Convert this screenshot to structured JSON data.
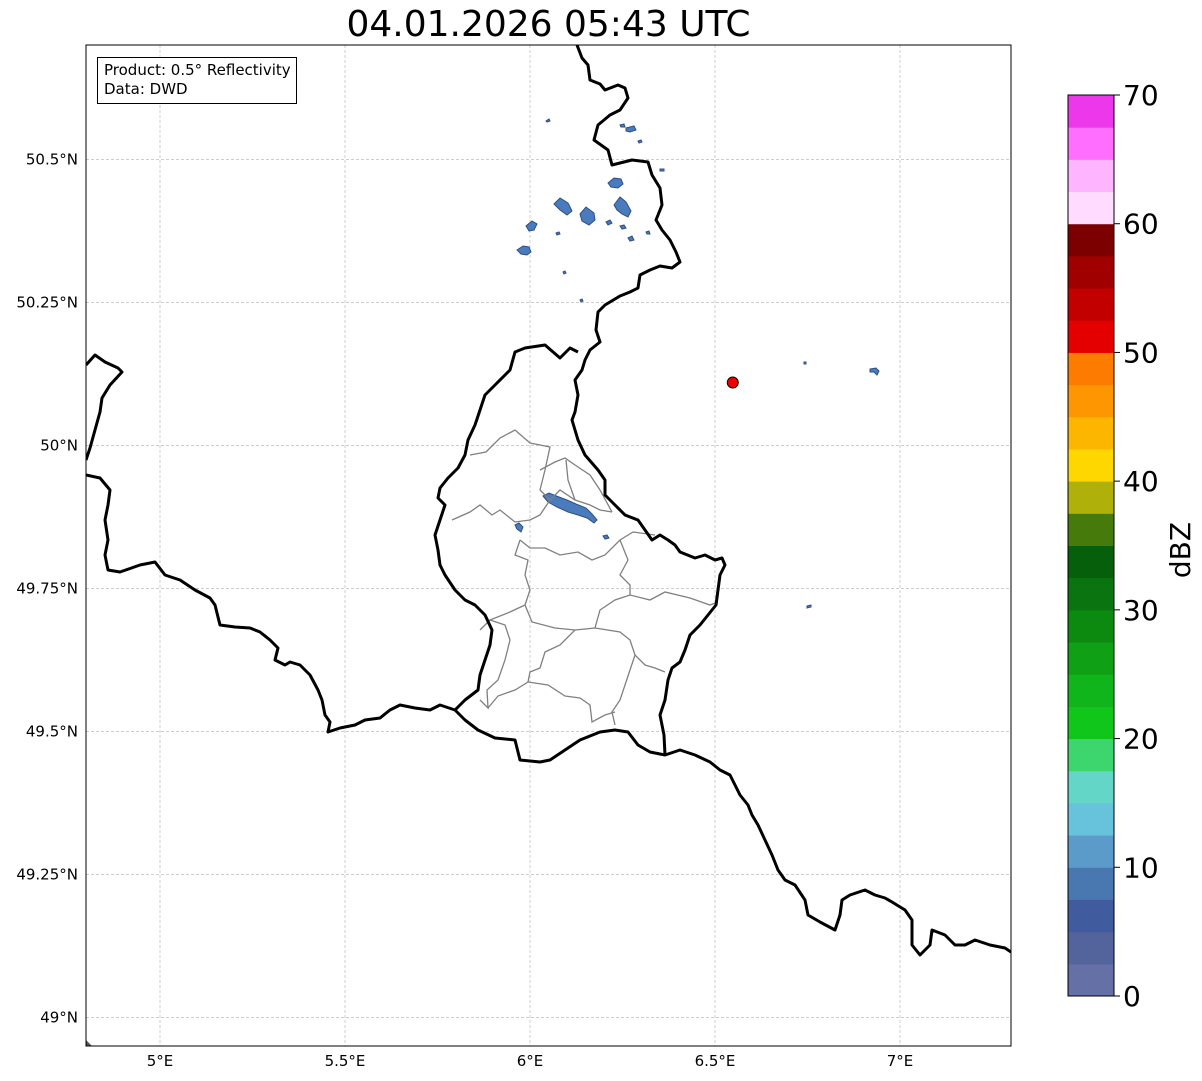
{
  "title": "04.01.2026 05:43 UTC",
  "info": {
    "product": "Product: 0.5° Reflectivity",
    "data": "Data: DWD"
  },
  "axes": {
    "x_ticks": [
      "5°E",
      "5.5°E",
      "6°E",
      "6.5°E",
      "7°E"
    ],
    "y_ticks": [
      "50.5°N",
      "50.25°N",
      "50°N",
      "49.75°N",
      "49.5°N",
      "49.25°N",
      "49°N"
    ],
    "x_tick_values": [
      5.0,
      5.5,
      6.0,
      6.5,
      7.0
    ],
    "y_tick_values": [
      50.5,
      50.25,
      50.0,
      49.75,
      49.5,
      49.25,
      49.0
    ],
    "lon_range": [
      4.8,
      7.3
    ],
    "lat_range": [
      48.95,
      50.7
    ]
  },
  "radar_site": {
    "lon": 6.548,
    "lat": 50.11,
    "color": "#ee0000"
  },
  "colorbar": {
    "label": "dBZ",
    "tick_labels": [
      "0",
      "10",
      "20",
      "30",
      "40",
      "50",
      "60",
      "70"
    ],
    "range": [
      0,
      70
    ],
    "colors": [
      "#6571a6",
      "#53649c",
      "#415c9e",
      "#4977b0",
      "#5b9bc9",
      "#67c2dc",
      "#63d6c7",
      "#3dd66e",
      "#11c61a",
      "#10b51c",
      "#0fa015",
      "#0c8a0f",
      "#0a7510",
      "#065f0a",
      "#467a0a",
      "#afb10a",
      "#fed600",
      "#fdb600",
      "#fd9600",
      "#fd7c00",
      "#e50000",
      "#c20000",
      "#a00000",
      "#7c0000",
      "#ffdcff",
      "#ffb4ff",
      "#ff6efe",
      "#ec37ea"
    ]
  },
  "echoes": {
    "color": "#4a7bbd",
    "edge": "#2f4f86"
  }
}
